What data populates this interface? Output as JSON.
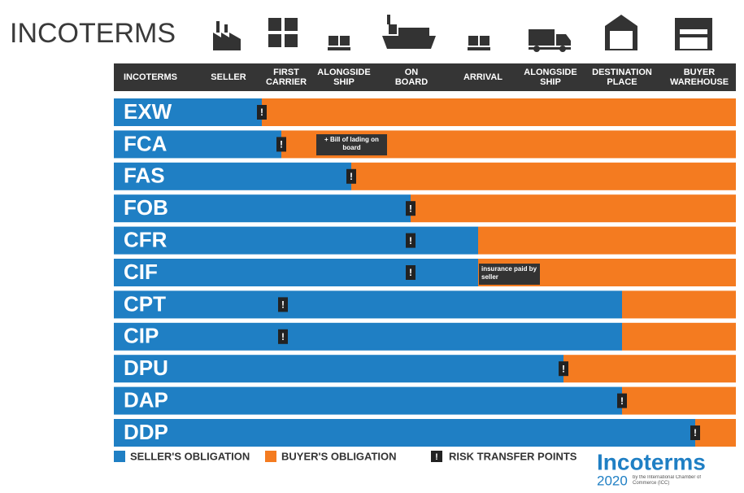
{
  "header": {
    "title": "INCOTERMS",
    "columns": [
      "INCOTERMS",
      "SELLER",
      "FIRST CARRIER",
      "ALONGSIDE SHIP",
      "ON BOARD",
      "ARRIVAL",
      "ALONGSIDE SHIP",
      "DESTINATION PLACE",
      "BUYER WAREHOUSE"
    ]
  },
  "rows": [
    {
      "term": "EXW"
    },
    {
      "term": "FCA",
      "note": "+ Bill of lading on board"
    },
    {
      "term": "FAS"
    },
    {
      "term": "FOB"
    },
    {
      "term": "CFR"
    },
    {
      "term": "CIF",
      "note": "insurance paid by seller"
    },
    {
      "term": "CPT"
    },
    {
      "term": "CIP"
    },
    {
      "term": "DPU"
    },
    {
      "term": "DAP"
    },
    {
      "term": "DDP"
    }
  ],
  "legend": {
    "seller": "SELLER'S OBLIGATION",
    "buyer": "BUYER'S OBLIGATION",
    "risk": "RISK TRANSFER POINTS",
    "risk_icon": "!"
  },
  "logo": {
    "name": "Incoterms",
    "year": "2020",
    "caption": "by the International Chamber of Commerce (ICC)"
  }
}
